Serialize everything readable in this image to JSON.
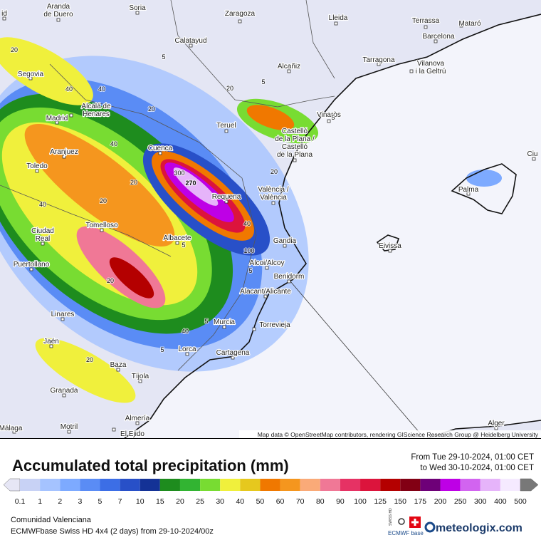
{
  "map": {
    "attribution": "Map data © OpenStreetMap contributors, rendering GIScience Research Group @ Heidelberg University",
    "cities": [
      {
        "lines": [
          "Aranda",
          "de Duero"
        ]
      },
      {
        "lines": [
          "Soria"
        ]
      },
      {
        "lines": [
          "Zaragoza"
        ]
      },
      {
        "lines": [
          "Lleida"
        ]
      },
      {
        "lines": [
          "Terrassa"
        ]
      },
      {
        "lines": [
          "Mataró"
        ]
      },
      {
        "lines": [
          "Barcelona"
        ]
      },
      {
        "lines": [
          "Calatayud"
        ]
      },
      {
        "lines": [
          "Tarragona"
        ]
      },
      {
        "lines": [
          "Vilanova",
          "i la Geltrú"
        ]
      },
      {
        "lines": [
          "Alcañiz"
        ]
      },
      {
        "lines": [
          "Segovia"
        ]
      },
      {
        "lines": [
          "Alcalá de",
          "Henares"
        ]
      },
      {
        "lines": [
          "Madrid"
        ]
      },
      {
        "lines": [
          "Vinaròs"
        ]
      },
      {
        "lines": [
          "Teruel"
        ]
      },
      {
        "lines": [
          "Castelló",
          "de la Plana /",
          "Castelló",
          "de la Plana"
        ]
      },
      {
        "lines": [
          "Aranjuez"
        ]
      },
      {
        "lines": [
          "Cuenca"
        ]
      },
      {
        "lines": [
          "Toledo"
        ]
      },
      {
        "lines": [
          "València /",
          "València"
        ]
      },
      {
        "lines": [
          "Requena"
        ]
      },
      {
        "lines": [
          "Palma"
        ]
      },
      {
        "lines": [
          "Ciudad",
          "Real"
        ]
      },
      {
        "lines": [
          "Tomelloso"
        ]
      },
      {
        "lines": [
          "Albacete"
        ]
      },
      {
        "lines": [
          "Gandia"
        ]
      },
      {
        "lines": [
          "Eivissa"
        ]
      },
      {
        "lines": [
          "Puertollano"
        ]
      },
      {
        "lines": [
          "Alcoi/Alcoy"
        ]
      },
      {
        "lines": [
          "Benidorm"
        ]
      },
      {
        "lines": [
          "Alacant/Alicante"
        ]
      },
      {
        "lines": [
          "Linares"
        ]
      },
      {
        "lines": [
          "Murcia"
        ]
      },
      {
        "lines": [
          "Torrevieja"
        ]
      },
      {
        "lines": [
          "Jaén"
        ]
      },
      {
        "lines": [
          "Lorca"
        ]
      },
      {
        "lines": [
          "Cartagena"
        ]
      },
      {
        "lines": [
          "Baza"
        ]
      },
      {
        "lines": [
          "Tíjola"
        ]
      },
      {
        "lines": [
          "Granada"
        ]
      },
      {
        "lines": [
          "Almería"
        ]
      },
      {
        "lines": [
          "Motril"
        ]
      },
      {
        "lines": [
          "Málaga"
        ]
      },
      {
        "lines": [
          "El Ejido"
        ]
      },
      {
        "lines": [
          "Alger"
        ]
      },
      {
        "lines": [
          "Ciu"
        ]
      },
      {
        "lines": [
          "id"
        ]
      }
    ],
    "contour_labels": [
      "270",
      "300",
      "100",
      "40",
      "40",
      "40",
      "40",
      "40",
      "20",
      "20",
      "20",
      "20",
      "20",
      "20",
      "5",
      "5",
      "5",
      "5",
      "5",
      "5",
      "20",
      "40",
      "20",
      "5"
    ]
  },
  "footer": {
    "title": "Accumulated total precipitation (mm)",
    "period_from": "From Tue 29-10-2024, 01:00 CET",
    "period_to": "to Wed 30-10-2024, 01:00 CET",
    "region": "Comunidad Valenciana",
    "model": "ECMWFbase Swiss HD 4x4 (2 days) from 29-10-2024/00z",
    "brand": "meteologix.com",
    "badge_top": "SWISS HD",
    "badge_bottom": "ECMWF base"
  },
  "legend": {
    "values": [
      "0.1",
      "1",
      "2",
      "3",
      "5",
      "7",
      "10",
      "15",
      "20",
      "25",
      "30",
      "40",
      "50",
      "60",
      "70",
      "80",
      "90",
      "100",
      "125",
      "150",
      "175",
      "200",
      "250",
      "300",
      "400",
      "500"
    ],
    "colors": [
      "#e6e6f5",
      "#c8d2f5",
      "#a5c3ff",
      "#7daaff",
      "#5a8cf5",
      "#3c6ee6",
      "#2850c8",
      "#143296",
      "#1e8c1e",
      "#32b432",
      "#78dc32",
      "#f0f03c",
      "#e6c81e",
      "#f07800",
      "#f5961e",
      "#faaa78",
      "#f07896",
      "#e63264",
      "#dc143c",
      "#b40000",
      "#820014",
      "#6e0078",
      "#be00e6",
      "#d264f0",
      "#e6b4fa",
      "#f5eaff",
      "#d2d2d2",
      "#787878"
    ]
  }
}
